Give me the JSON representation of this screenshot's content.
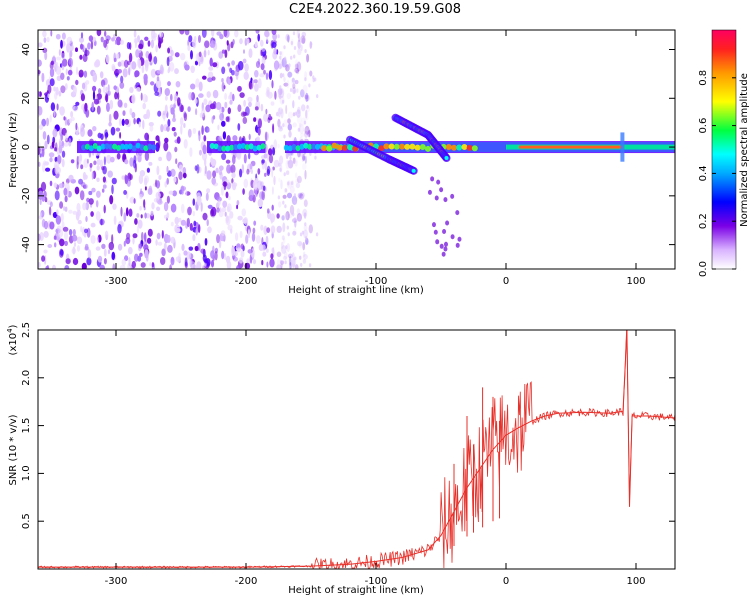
{
  "title": "C2E4.2022.360.19.59.G08",
  "chart_data": [
    {
      "type": "heatmap",
      "xlabel": "Height of straight line (km)",
      "ylabel": "Frequency (Hz)",
      "xlim": [
        -360,
        130
      ],
      "ylim": [
        -50,
        48
      ],
      "xticks": [
        -300,
        -200,
        -100,
        0,
        100
      ],
      "yticks": [
        -40,
        -20,
        0,
        20,
        40
      ],
      "colorbar": {
        "label": "Normalized spectral amplitude",
        "range": [
          0.0,
          1.0
        ],
        "ticks": [
          0.0,
          0.2,
          0.4,
          0.6,
          0.8
        ],
        "colormap": [
          "#ffffff",
          "#7a00e6",
          "#0000ff",
          "#00ffff",
          "#00ff00",
          "#ffff00",
          "#ff8000",
          "#ff0000"
        ]
      },
      "features": [
        {
          "name": "carrier line",
          "x_range": [
            -330,
            130
          ],
          "frequency_hz": 0
        },
        {
          "name": "doppler branch upper",
          "x": [
            -85,
            -60,
            -45
          ],
          "frequency_hz": [
            12,
            5,
            -5
          ]
        },
        {
          "name": "doppler branch lower",
          "x": [
            -120,
            -90,
            -70
          ],
          "frequency_hz": [
            3,
            -5,
            -10
          ]
        },
        {
          "name": "noise region",
          "x_range": [
            -360,
            -150
          ]
        }
      ],
      "grid": false
    },
    {
      "type": "line",
      "xlabel": "Height of straight line (km)",
      "ylabel": "SNR (10 * v/v)",
      "y_scale_label": "(x10",
      "y_scale_exponent": "4",
      "xlim": [
        -360,
        130
      ],
      "ylim": [
        0,
        2.5
      ],
      "xticks": [
        -300,
        -200,
        -100,
        0,
        100
      ],
      "yticks": [
        0.5,
        1.0,
        1.5,
        2.0,
        2.5
      ],
      "series_color": "#e8302a",
      "x": [
        -360,
        -300,
        -200,
        -150,
        -120,
        -100,
        -80,
        -60,
        -50,
        -40,
        -30,
        -20,
        -10,
        0,
        10,
        20,
        30,
        40,
        60,
        80,
        90,
        93,
        95,
        97,
        100,
        110,
        130
      ],
      "y": [
        0.02,
        0.02,
        0.02,
        0.03,
        0.05,
        0.08,
        0.12,
        0.2,
        0.35,
        0.6,
        0.85,
        1.05,
        1.25,
        1.4,
        1.48,
        1.55,
        1.6,
        1.63,
        1.64,
        1.63,
        1.65,
        2.5,
        0.65,
        1.6,
        1.6,
        1.6,
        1.58
      ],
      "spikes": [
        {
          "x": -40,
          "y": 1.1
        },
        {
          "x": -30,
          "y": 1.6
        },
        {
          "x": -25,
          "y": 1.3
        },
        {
          "x": -18,
          "y": 1.9
        },
        {
          "x": -10,
          "y": 1.8
        },
        {
          "x": -5,
          "y": 1.55
        }
      ],
      "grid": false
    }
  ]
}
